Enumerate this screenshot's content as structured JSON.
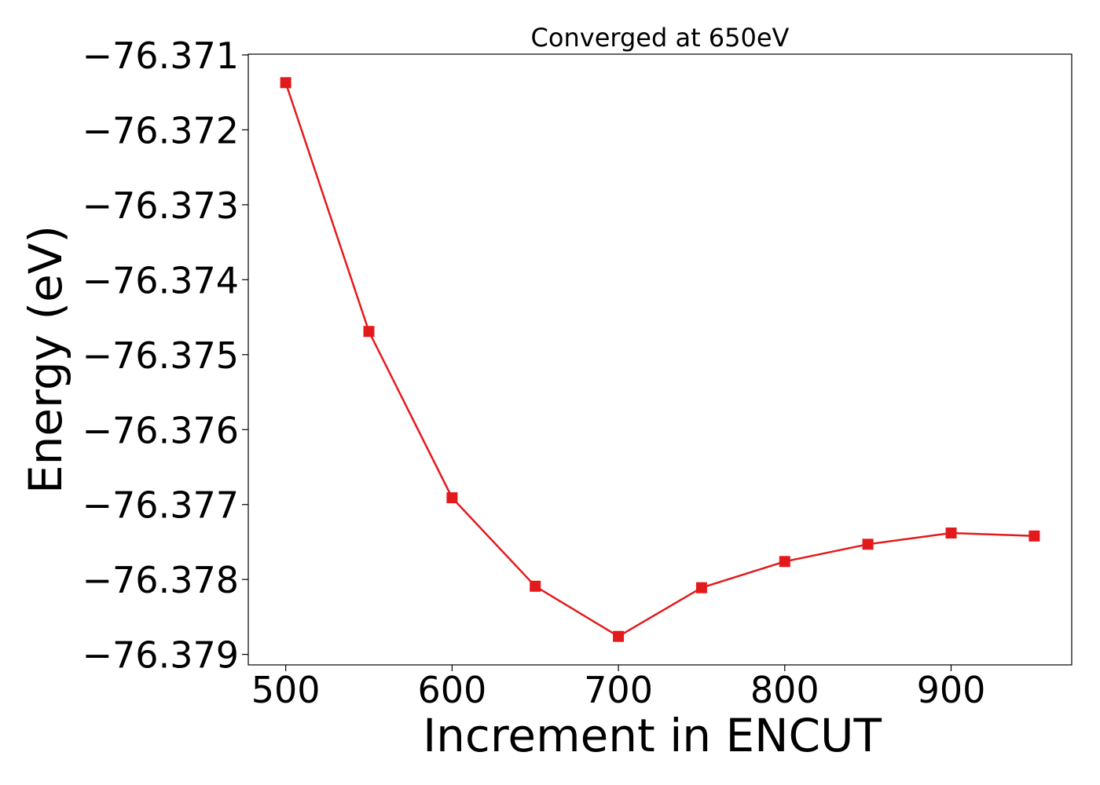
{
  "chart_data": {
    "type": "line",
    "title": "Converged at 650eV",
    "xlabel": "Increment in ENCUT",
    "ylabel": "Energy (eV)",
    "x": [
      500,
      550,
      600,
      650,
      700,
      750,
      800,
      850,
      900,
      950
    ],
    "series": [
      {
        "values": [
          -76.37137,
          -76.37469,
          -76.37691,
          -76.37809,
          -76.37876,
          -76.37811,
          -76.37776,
          -76.37753,
          -76.37738,
          -76.37742
        ],
        "color": "#e31a1c",
        "marker": "square"
      }
    ],
    "xlim": [
      477.5,
      972.5
    ],
    "ylim": [
      -76.37914,
      -76.37099
    ],
    "xticks": [
      500,
      600,
      700,
      800,
      900
    ],
    "xtick_labels": [
      "500",
      "600",
      "700",
      "800",
      "900"
    ],
    "yticks": [
      -76.371,
      -76.372,
      -76.373,
      -76.374,
      -76.375,
      -76.376,
      -76.377,
      -76.378,
      -76.379
    ],
    "ytick_labels": [
      "−76.371",
      "−76.372",
      "−76.373",
      "−76.374",
      "−76.375",
      "−76.376",
      "−76.377",
      "−76.378",
      "−76.379"
    ],
    "grid": false,
    "legend": "none"
  }
}
